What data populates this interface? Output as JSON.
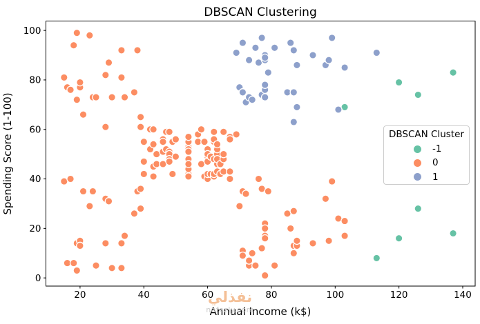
{
  "figure": {
    "title": "DBSCAN Clustering",
    "xlabel": "Annual Income (k$)",
    "ylabel": "Spending Score (1-100)"
  },
  "legend": {
    "title": "DBSCAN Cluster",
    "entries": [
      {
        "label": "-1",
        "color": "#66c2a5"
      },
      {
        "label": "0",
        "color": "#fc8d62"
      },
      {
        "label": "1",
        "color": "#8da0cb"
      }
    ]
  },
  "watermark": {
    "text_arabic": "نفذلي",
    "text_latin": "nafezly.com"
  },
  "chart_data": {
    "type": "scatter",
    "title": "DBSCAN Clustering",
    "xlabel": "Annual Income (k$)",
    "ylabel": "Spending Score (1-100)",
    "xlim": [
      9.3,
      143.9
    ],
    "ylim": [
      -3.3,
      103.8
    ],
    "xticks": [
      20,
      40,
      60,
      80,
      100,
      120,
      140
    ],
    "yticks": [
      0,
      20,
      40,
      60,
      80,
      100
    ],
    "grid": false,
    "legend_position": "center-right",
    "marker": {
      "radius": 5.2,
      "edge_color": "#ffffff",
      "edge_width": 1.3
    },
    "series": [
      {
        "name": "-1",
        "color": "#66c2a5",
        "points": [
          [
            103,
            69
          ],
          [
            113,
            8
          ],
          [
            120,
            16
          ],
          [
            120,
            79
          ],
          [
            126,
            28
          ],
          [
            126,
            74
          ],
          [
            137,
            18
          ],
          [
            137,
            83
          ]
        ]
      },
      {
        "name": "0",
        "color": "#fc8d62",
        "points": [
          [
            15,
            39
          ],
          [
            15,
            81
          ],
          [
            16,
            6
          ],
          [
            16,
            77
          ],
          [
            17,
            40
          ],
          [
            17,
            76
          ],
          [
            18,
            6
          ],
          [
            18,
            94
          ],
          [
            19,
            3
          ],
          [
            19,
            72
          ],
          [
            19,
            14
          ],
          [
            19,
            99
          ],
          [
            20,
            15
          ],
          [
            20,
            77
          ],
          [
            20,
            13
          ],
          [
            20,
            79
          ],
          [
            21,
            35
          ],
          [
            21,
            66
          ],
          [
            23,
            29
          ],
          [
            23,
            98
          ],
          [
            24,
            35
          ],
          [
            24,
            73
          ],
          [
            25,
            5
          ],
          [
            25,
            73
          ],
          [
            28,
            14
          ],
          [
            28,
            82
          ],
          [
            28,
            32
          ],
          [
            28,
            61
          ],
          [
            29,
            31
          ],
          [
            29,
            87
          ],
          [
            30,
            4
          ],
          [
            30,
            73
          ],
          [
            33,
            4
          ],
          [
            33,
            92
          ],
          [
            33,
            14
          ],
          [
            33,
            81
          ],
          [
            34,
            17
          ],
          [
            34,
            73
          ],
          [
            37,
            26
          ],
          [
            37,
            75
          ],
          [
            38,
            35
          ],
          [
            38,
            92
          ],
          [
            39,
            36
          ],
          [
            39,
            61
          ],
          [
            39,
            28
          ],
          [
            39,
            65
          ],
          [
            40,
            55
          ],
          [
            40,
            47
          ],
          [
            40,
            42
          ],
          [
            40,
            42
          ],
          [
            42,
            52
          ],
          [
            42,
            60
          ],
          [
            43,
            54
          ],
          [
            43,
            60
          ],
          [
            43,
            45
          ],
          [
            43,
            41
          ],
          [
            44,
            50
          ],
          [
            44,
            46
          ],
          [
            46,
            51
          ],
          [
            46,
            46
          ],
          [
            46,
            56
          ],
          [
            46,
            55
          ],
          [
            47,
            52
          ],
          [
            47,
            59
          ],
          [
            48,
            51
          ],
          [
            48,
            59
          ],
          [
            48,
            50
          ],
          [
            48,
            48
          ],
          [
            48,
            59
          ],
          [
            48,
            47
          ],
          [
            49,
            55
          ],
          [
            49,
            42
          ],
          [
            50,
            49
          ],
          [
            50,
            56
          ],
          [
            54,
            47
          ],
          [
            54,
            54
          ],
          [
            54,
            53
          ],
          [
            54,
            48
          ],
          [
            54,
            52
          ],
          [
            54,
            42
          ],
          [
            54,
            51
          ],
          [
            54,
            55
          ],
          [
            54,
            41
          ],
          [
            54,
            44
          ],
          [
            54,
            57
          ],
          [
            54,
            46
          ],
          [
            57,
            58
          ],
          [
            57,
            55
          ],
          [
            58,
            60
          ],
          [
            58,
            46
          ],
          [
            59,
            55
          ],
          [
            59,
            41
          ],
          [
            60,
            49
          ],
          [
            60,
            40
          ],
          [
            60,
            42
          ],
          [
            60,
            52
          ],
          [
            60,
            47
          ],
          [
            60,
            50
          ],
          [
            61,
            42
          ],
          [
            61,
            49
          ],
          [
            62,
            41
          ],
          [
            62,
            48
          ],
          [
            62,
            59
          ],
          [
            62,
            55
          ],
          [
            62,
            56
          ],
          [
            62,
            42
          ],
          [
            63,
            50
          ],
          [
            63,
            46
          ],
          [
            63,
            43
          ],
          [
            63,
            48
          ],
          [
            63,
            52
          ],
          [
            63,
            54
          ],
          [
            64,
            42
          ],
          [
            64,
            46
          ],
          [
            65,
            48
          ],
          [
            65,
            50
          ],
          [
            65,
            43
          ],
          [
            65,
            59
          ],
          [
            67,
            43
          ],
          [
            67,
            57
          ],
          [
            67,
            56
          ],
          [
            67,
            40
          ],
          [
            69,
            58
          ],
          [
            70,
            29
          ],
          [
            71,
            35
          ],
          [
            71,
            11
          ],
          [
            71,
            9
          ],
          [
            72,
            34
          ],
          [
            73,
            5
          ],
          [
            73,
            7
          ],
          [
            74,
            10
          ],
          [
            75,
            5
          ],
          [
            76,
            40
          ],
          [
            77,
            12
          ],
          [
            77,
            36
          ],
          [
            78,
            22
          ],
          [
            78,
            17
          ],
          [
            78,
            20
          ],
          [
            78,
            16
          ],
          [
            78,
            1
          ],
          [
            78,
            1
          ],
          [
            79,
            35
          ],
          [
            81,
            5
          ],
          [
            85,
            26
          ],
          [
            86,
            20
          ],
          [
            87,
            27
          ],
          [
            87,
            13
          ],
          [
            87,
            10
          ],
          [
            88,
            13
          ],
          [
            88,
            15
          ],
          [
            93,
            14
          ],
          [
            97,
            32
          ],
          [
            98,
            15
          ],
          [
            99,
            39
          ],
          [
            101,
            24
          ],
          [
            103,
            17
          ],
          [
            103,
            23
          ]
        ]
      },
      {
        "name": "1",
        "color": "#8da0cb",
        "points": [
          [
            69,
            91
          ],
          [
            70,
            77
          ],
          [
            71,
            95
          ],
          [
            71,
            75
          ],
          [
            71,
            75
          ],
          [
            72,
            71
          ],
          [
            73,
            88
          ],
          [
            73,
            73
          ],
          [
            74,
            72
          ],
          [
            75,
            93
          ],
          [
            76,
            87
          ],
          [
            77,
            97
          ],
          [
            77,
            74
          ],
          [
            78,
            90
          ],
          [
            78,
            88
          ],
          [
            78,
            76
          ],
          [
            78,
            89
          ],
          [
            78,
            78
          ],
          [
            78,
            73
          ],
          [
            79,
            83
          ],
          [
            81,
            93
          ],
          [
            85,
            75
          ],
          [
            86,
            95
          ],
          [
            87,
            63
          ],
          [
            87,
            75
          ],
          [
            87,
            92
          ],
          [
            88,
            86
          ],
          [
            88,
            69
          ],
          [
            93,
            90
          ],
          [
            97,
            86
          ],
          [
            98,
            88
          ],
          [
            99,
            97
          ],
          [
            101,
            68
          ],
          [
            103,
            85
          ],
          [
            113,
            91
          ]
        ]
      }
    ]
  }
}
